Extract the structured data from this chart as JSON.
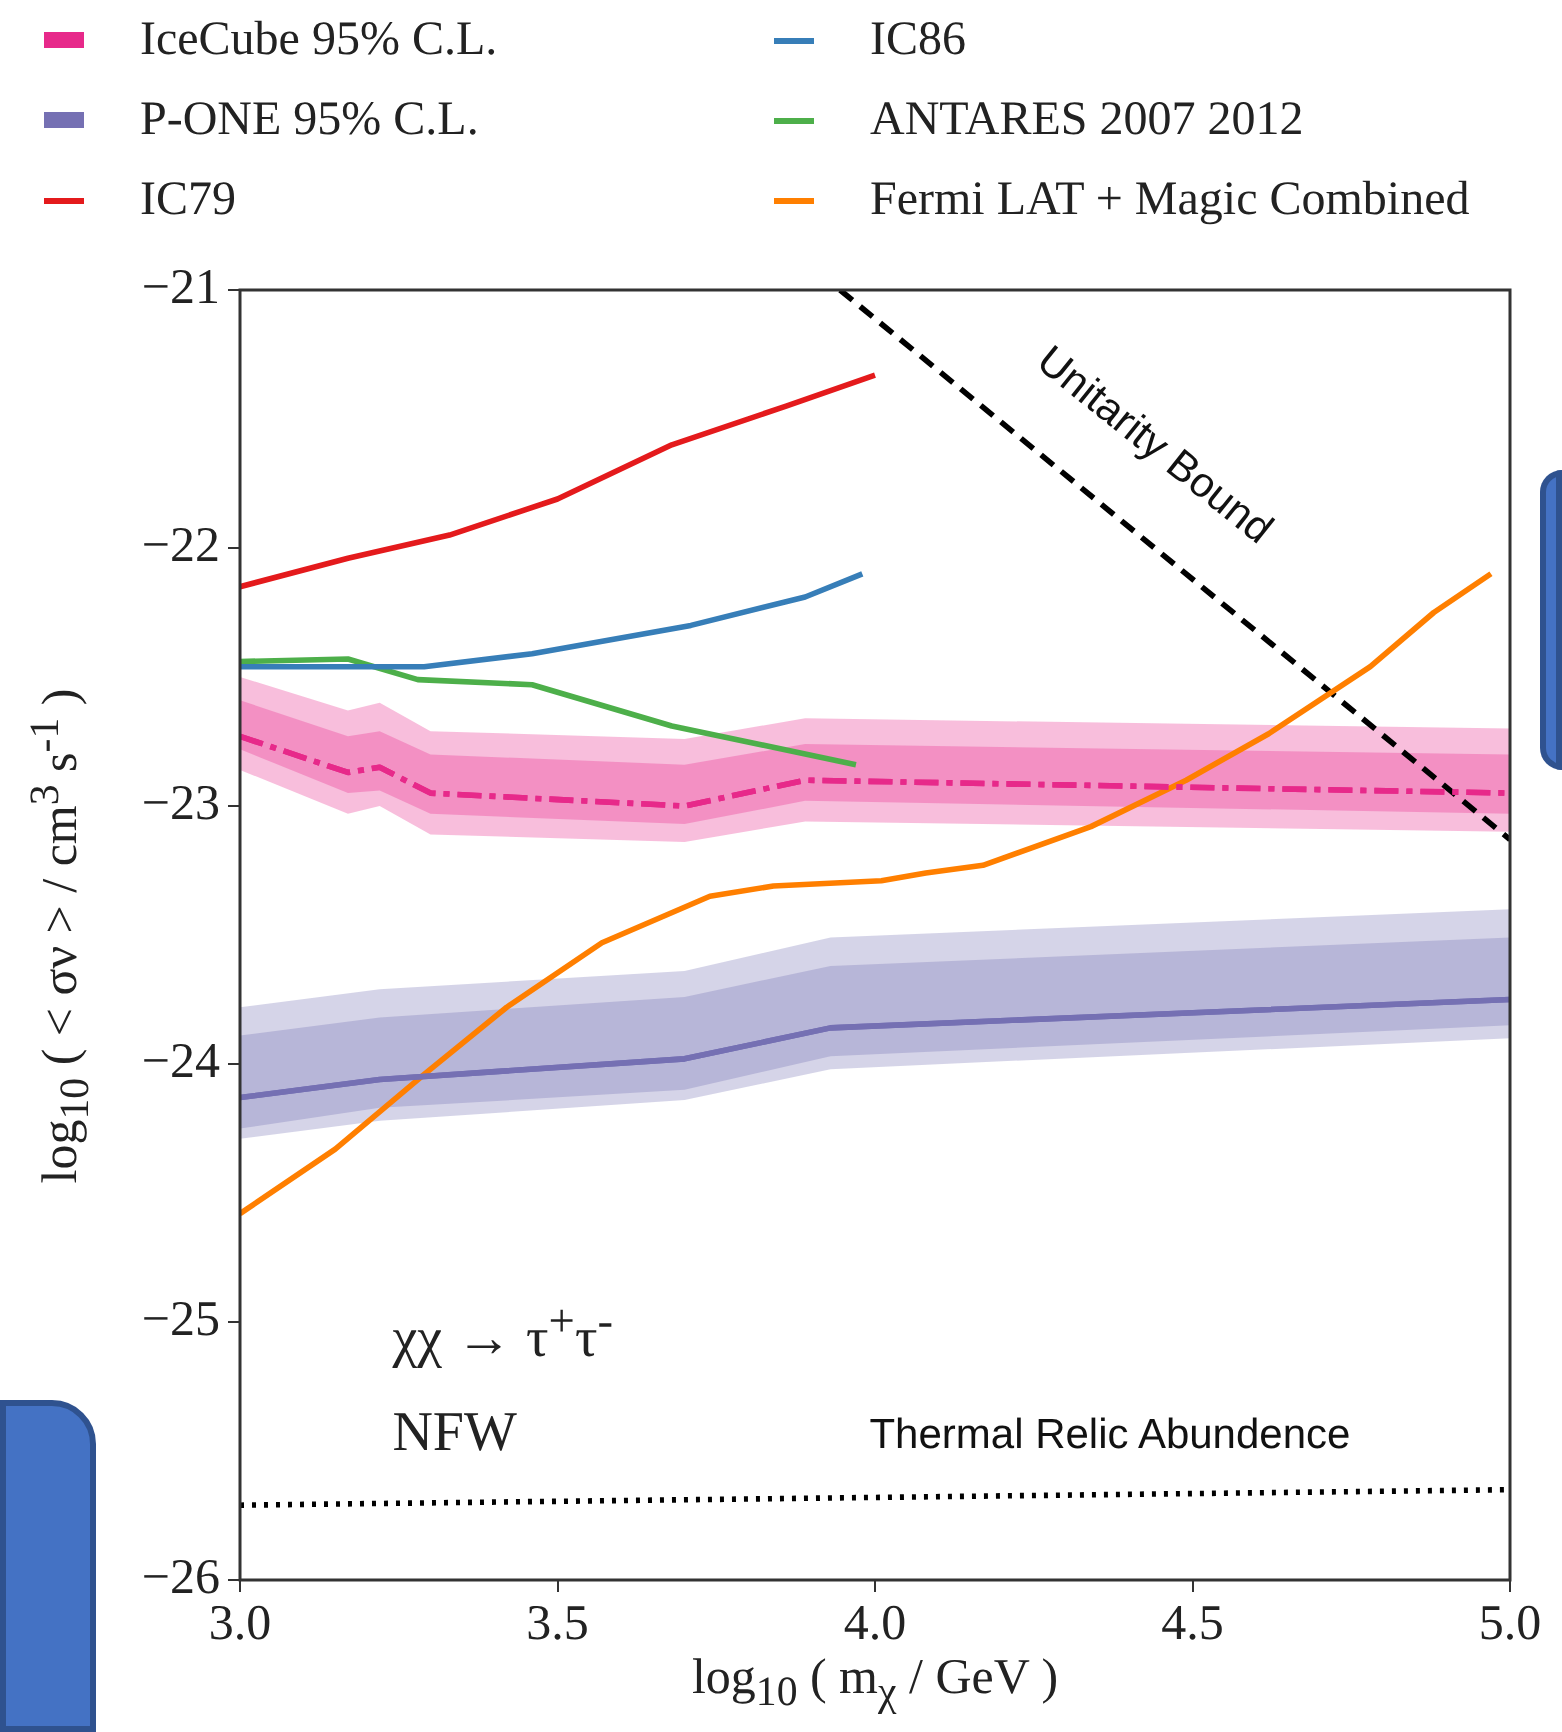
{
  "chart_data": {
    "type": "line",
    "xlabel": "log$_{10}$ ( m$_{χ}$ / GeV )",
    "ylabel": "log$_{10}$ ( < σν > / cm$^{3}$ s$^{-1}$ )",
    "xlim": [
      3.0,
      5.0
    ],
    "xticks": [
      {
        "value": 3.0,
        "label": "3.0"
      },
      {
        "value": 3.5,
        "label": "3.5"
      },
      {
        "value": 4.0,
        "label": "4.0"
      },
      {
        "value": 4.5,
        "label": "4.5"
      },
      {
        "value": 5.0,
        "label": "5.0"
      }
    ],
    "ylim": [
      -26,
      -21
    ],
    "yticks": [
      {
        "value": -26,
        "label": "−26"
      },
      {
        "value": -25,
        "label": "−25"
      },
      {
        "value": -24,
        "label": "−24"
      },
      {
        "value": -23,
        "label": "−23"
      },
      {
        "value": -22,
        "label": "−22"
      },
      {
        "value": -21,
        "label": "−21"
      }
    ],
    "grid": false,
    "legend": "top left",
    "marker": "none",
    "series": [
      {
        "name": "IceCube 95% C.L.",
        "color": "#e7298a",
        "line_style": "dashdot",
        "x": [
          3.0,
          3.17,
          3.22,
          3.3,
          3.7,
          3.89,
          5.0
        ],
        "values": [
          -22.73,
          -22.87,
          -22.85,
          -22.95,
          -23.0,
          -22.9,
          -22.95
        ],
        "lower": [
          -22.86,
          -23.03,
          -23.0,
          -23.11,
          -23.14,
          -23.06,
          -23.1
        ],
        "upper": [
          -22.5,
          -22.63,
          -22.6,
          -22.71,
          -22.74,
          -22.66,
          -22.7
        ]
      },
      {
        "color": "#e7298a",
        "line_style": "dashdot",
        "x": [
          3.0,
          3.17,
          3.22,
          3.3,
          3.7,
          3.89,
          5.0
        ],
        "values": [
          -22.73,
          -22.87,
          -22.85,
          -22.95,
          -23.0,
          -22.9,
          -22.95
        ],
        "lower": [
          -22.78,
          -22.95,
          -22.94,
          -23.03,
          -23.07,
          -22.98,
          -23.03
        ],
        "upper": [
          -22.59,
          -22.73,
          -22.71,
          -22.8,
          -22.84,
          -22.76,
          -22.8
        ]
      },
      {
        "name": "P-ONE 95% C.L.",
        "color": "#7570b3",
        "line_style": "solid",
        "x": [
          3.0,
          3.22,
          3.7,
          3.93,
          5.0
        ],
        "values": [
          -24.13,
          -24.06,
          -23.98,
          -23.86,
          -23.75
        ],
        "lower": [
          -24.29,
          -24.22,
          -24.14,
          -24.02,
          -23.9
        ],
        "upper": [
          -23.78,
          -23.71,
          -23.64,
          -23.51,
          -23.4
        ]
      },
      {
        "color": "#7570b3",
        "line_style": "solid",
        "x": [
          3.0,
          3.22,
          3.7,
          3.93,
          5.0
        ],
        "values": [
          -24.13,
          -24.06,
          -23.98,
          -23.86,
          -23.75
        ],
        "lower": [
          -24.25,
          -24.17,
          -24.1,
          -23.97,
          -23.85
        ],
        "upper": [
          -23.89,
          -23.82,
          -23.74,
          -23.62,
          -23.51
        ]
      },
      {
        "name": "IC79",
        "color": "#e41a1c",
        "line_style": "solid",
        "x": [
          3.0,
          3.17,
          3.33,
          3.5,
          3.68,
          3.86,
          4.0
        ],
        "values": [
          -22.15,
          -22.04,
          -21.95,
          -21.81,
          -21.6,
          -21.45,
          -21.33
        ]
      },
      {
        "name": "IC86",
        "color": "#377eb8",
        "line_style": "solid",
        "x": [
          3.0,
          3.29,
          3.46,
          3.71,
          3.89,
          3.98
        ],
        "values": [
          -22.46,
          -22.46,
          -22.41,
          -22.3,
          -22.19,
          -22.1
        ]
      },
      {
        "name": "ANTARES 2007 2012",
        "color": "#4daf4a",
        "line_style": "solid",
        "x": [
          3.0,
          3.17,
          3.28,
          3.46,
          3.68,
          3.97
        ],
        "values": [
          -22.44,
          -22.43,
          -22.51,
          -22.53,
          -22.69,
          -22.84
        ]
      },
      {
        "name": "Fermi LAT + Magic Combined",
        "color": "#ff7f00",
        "line_style": "solid",
        "x": [
          3.0,
          3.15,
          3.29,
          3.42,
          3.57,
          3.74,
          3.84,
          4.01,
          4.08,
          4.17,
          4.34,
          4.49,
          4.62,
          4.78,
          4.88,
          4.97
        ],
        "values": [
          -24.58,
          -24.33,
          -24.04,
          -23.78,
          -23.53,
          -23.35,
          -23.31,
          -23.29,
          -23.26,
          -23.23,
          -23.08,
          -22.9,
          -22.72,
          -22.46,
          -22.25,
          -22.1
        ]
      },
      {
        "color": "#000000",
        "line_style": "dashed",
        "x": [
          3.945,
          5.0
        ],
        "values": [
          -21.0,
          -23.13
        ]
      },
      {
        "color": "#000000",
        "line_style": "dotted",
        "x": [
          3.0,
          5.0
        ],
        "values": [
          -25.71,
          -25.65
        ]
      }
    ],
    "annotations": [
      "Unitarity Bound",
      "Thermal Relic Abundence",
      "χχ → τ$^{+}$τ$^{-}$",
      "NFW"
    ]
  }
}
